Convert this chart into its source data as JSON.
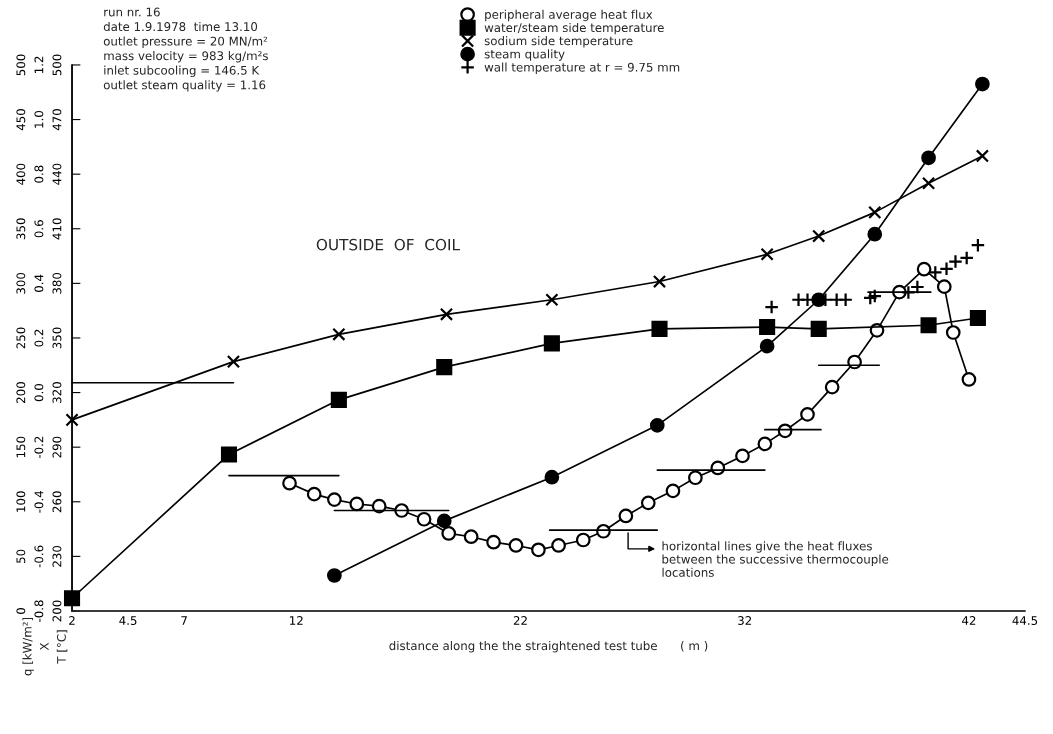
{
  "chart_data": {
    "type": "line",
    "xlabel": "distance along the the straightened test tube      ( m )",
    "ylabel": "q [kW/m²]",
    "y2label": "X",
    "y3label": "T [°C]",
    "xlim": [
      2,
      44.5
    ],
    "xticks": [
      2,
      4.5,
      7,
      12,
      22,
      32,
      42,
      44.5
    ],
    "ylim": [
      0,
      500
    ],
    "yticks": [
      0,
      50,
      100,
      150,
      200,
      250,
      300,
      350,
      400,
      450,
      500
    ],
    "y2lim": [
      -0.8,
      1.2
    ],
    "y2ticks": [
      -0.8,
      -0.6,
      -0.4,
      -0.2,
      {
        "value": 0,
        "label": "0.0"
      },
      0.2,
      0.4,
      0.6,
      0.8,
      {
        "value": 1,
        "label": "1.0"
      },
      1.2
    ],
    "y3lim": [
      200,
      500
    ],
    "y3ticks": [
      200,
      230,
      260,
      290,
      320,
      350,
      380,
      410,
      440,
      470,
      500
    ],
    "legend": "top",
    "annotations": [
      "run nr. 16\ndate 1.9.1978  time 13.10\noutlet pressure = 20 MN/m²\nmass velocity = 983 kg/m²s\ninlet subcooling = 146.5 K\noutlet steam quality = 1.16",
      "OUTSIDE  OF  COIL",
      {
        "text": "horizontal lines give the heat fluxes\nbetween the successive thermocouple\nlocations",
        "x": 26.8,
        "y": 74
      }
    ],
    "series": [
      {
        "name": "peripheral average heat flux",
        "axis": "y",
        "marker": "circle",
        "line_style": "solid",
        "color": "#000000",
        "x": [
          11.7,
          12.8,
          13.7,
          14.7,
          15.7,
          16.7,
          17.7,
          18.8,
          19.8,
          20.8,
          21.8,
          22.8,
          23.7,
          24.8,
          25.7,
          26.7,
          27.7,
          28.8,
          29.8,
          30.8,
          31.9,
          32.9,
          33.8,
          34.8,
          35.9,
          36.9,
          37.9,
          38.9,
          40.0,
          40.9,
          41.3,
          42.0
        ],
        "values": [
          117,
          107,
          102,
          98,
          96,
          92,
          84,
          71,
          68,
          63,
          60,
          56,
          60,
          65,
          73,
          87,
          99,
          110,
          122,
          131,
          142,
          153,
          165,
          180,
          205,
          228,
          257,
          292,
          313,
          297,
          255,
          212
        ]
      },
      {
        "name": "water/steam side temperature",
        "axis": "y3",
        "marker": "square",
        "line_style": "solid",
        "color": "#000000",
        "x": [
          2,
          9.0,
          13.9,
          18.6,
          23.4,
          28.2,
          33.0,
          35.3,
          40.2,
          42.4
        ],
        "values": [
          207,
          286,
          316,
          334,
          347,
          355,
          356,
          355,
          357,
          361
        ]
      },
      {
        "name": "sodium side temperature",
        "axis": "y3",
        "marker": "cross",
        "line_style": "solid",
        "color": "#000000",
        "x": [
          2,
          9.2,
          13.9,
          18.7,
          23.4,
          28.2,
          33.0,
          35.3,
          37.8,
          40.2,
          42.6
        ],
        "values": [
          305,
          337,
          352,
          363,
          371,
          381,
          396,
          406,
          419,
          435,
          450
        ]
      },
      {
        "name": "steam quality",
        "axis": "y2",
        "marker": "circle",
        "line_style": "solid",
        "color": "#000000",
        "x": [
          13.7,
          18.6,
          23.4,
          28.1,
          33.0,
          35.3,
          37.8,
          40.2,
          42.6
        ],
        "values": [
          -0.67,
          -0.47,
          -0.31,
          -0.12,
          0.17,
          0.34,
          0.58,
          0.86,
          1.13
        ]
      },
      {
        "name": "wall temperature at r = 9.75 mm",
        "type": "scatter",
        "axis": "y3",
        "marker": "plus",
        "color": "#000000",
        "x": [
          33.2,
          34.4,
          34.8,
          35.6,
          36.1,
          36.5,
          37.6,
          37.8,
          39.3,
          39.7,
          40.5,
          41.0,
          41.4,
          41.9,
          42.4
        ],
        "values": [
          367,
          371,
          371,
          371,
          371,
          371,
          372,
          373,
          375,
          378,
          386,
          388,
          392,
          394,
          401
        ]
      },
      {
        "axis": "y",
        "marker": "none",
        "line_style": "solid",
        "color": "#000000",
        "x": [
          2,
          9.2
        ],
        "values": [
          209,
          209
        ]
      },
      {
        "axis": "y",
        "marker": "none",
        "line_style": "solid",
        "color": "#000000",
        "x": [
          9.0,
          13.9
        ],
        "values": [
          124,
          124
        ]
      },
      {
        "axis": "y",
        "marker": "none",
        "line_style": "solid",
        "color": "#000000",
        "x": [
          13.7,
          18.8
        ],
        "values": [
          92,
          92
        ]
      },
      {
        "axis": "y",
        "marker": "none",
        "line_style": "solid",
        "color": "#000000",
        "x": [
          23.3,
          28.1
        ],
        "values": [
          74,
          74
        ]
      },
      {
        "axis": "y",
        "marker": "none",
        "line_style": "solid",
        "color": "#000000",
        "x": [
          28.1,
          32.9
        ],
        "values": [
          129,
          129
        ]
      },
      {
        "axis": "y",
        "marker": "none",
        "line_style": "solid",
        "color": "#000000",
        "x": [
          32.9,
          35.4
        ],
        "values": [
          166,
          166
        ]
      },
      {
        "axis": "y",
        "marker": "none",
        "line_style": "solid",
        "color": "#000000",
        "x": [
          35.3,
          38.0
        ],
        "values": [
          225,
          225
        ]
      },
      {
        "axis": "y",
        "marker": "none",
        "line_style": "solid",
        "color": "#000000",
        "x": [
          37.5,
          40.3
        ],
        "values": [
          292,
          292
        ]
      }
    ]
  }
}
